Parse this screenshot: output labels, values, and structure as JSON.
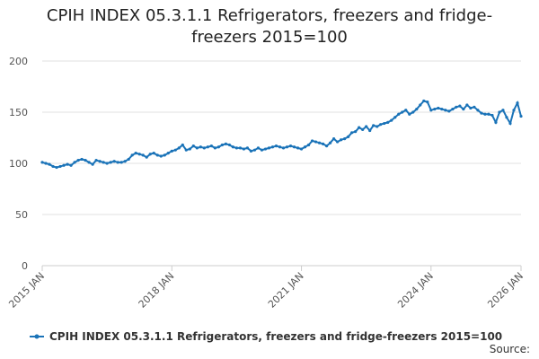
{
  "chart_data": {
    "type": "line",
    "title": "CPIH INDEX 05.3.1.1 Refrigerators, freezers and fridge-freezers 2015=100",
    "source": "Source:",
    "categories": [
      "2015 JAN",
      null,
      null,
      null,
      null,
      null,
      null,
      null,
      null,
      null,
      null,
      null,
      null,
      null,
      null,
      null,
      null,
      null,
      null,
      null,
      null,
      null,
      null,
      null,
      null,
      null,
      null,
      null,
      null,
      null,
      null,
      null,
      null,
      null,
      null,
      null,
      "2018 JAN",
      null,
      null,
      null,
      null,
      null,
      null,
      null,
      null,
      null,
      null,
      null,
      null,
      null,
      null,
      null,
      null,
      null,
      null,
      null,
      null,
      null,
      null,
      null,
      null,
      null,
      null,
      null,
      null,
      null,
      null,
      null,
      null,
      null,
      null,
      null,
      "2021 JAN",
      null,
      null,
      null,
      null,
      null,
      null,
      null,
      null,
      null,
      null,
      null,
      null,
      null,
      null,
      null,
      null,
      null,
      null,
      null,
      null,
      null,
      null,
      null,
      null,
      null,
      null,
      null,
      null,
      null,
      null,
      null,
      null,
      null,
      null,
      null,
      "2024 JAN",
      null,
      null,
      null,
      null,
      null,
      null,
      null,
      null,
      null,
      null,
      null,
      null,
      null,
      null,
      null,
      null,
      null,
      null,
      null,
      null,
      null,
      null,
      null,
      null,
      "2026 JAN"
    ],
    "series": [
      {
        "name": "CPIH INDEX 05.3.1.1 Refrigerators, freezers and fridge-freezers 2015=100",
        "color": "#1a73b8",
        "values": [
          101,
          100,
          99,
          97,
          96,
          97,
          98,
          99,
          98,
          101,
          103,
          104,
          103,
          101,
          99,
          103,
          102,
          101,
          100,
          101,
          102,
          101,
          101,
          102,
          104,
          108,
          110,
          109,
          108,
          106,
          109,
          110,
          108,
          107,
          108,
          110,
          112,
          113,
          115,
          118,
          113,
          114,
          117,
          115,
          116,
          115,
          116,
          117,
          115,
          116,
          118,
          119,
          118,
          116,
          115,
          115,
          114,
          115,
          112,
          113,
          115,
          113,
          114,
          115,
          116,
          117,
          116,
          115,
          116,
          117,
          116,
          115,
          114,
          116,
          118,
          122,
          121,
          120,
          119,
          117,
          120,
          124,
          121,
          123,
          124,
          126,
          130,
          131,
          135,
          133,
          136,
          132,
          137,
          136,
          138,
          139,
          140,
          142,
          145,
          148,
          150,
          152,
          148,
          150,
          153,
          157,
          161,
          160,
          152,
          153,
          154,
          153,
          152,
          151,
          153,
          155,
          156,
          153,
          157,
          154,
          155,
          152,
          149,
          148,
          148,
          147,
          140,
          150,
          152,
          145,
          139,
          152,
          159,
          146
        ]
      }
    ],
    "ylim": [
      0,
      200
    ],
    "yticks": [
      0,
      50,
      100,
      150,
      200
    ],
    "grid": true
  }
}
